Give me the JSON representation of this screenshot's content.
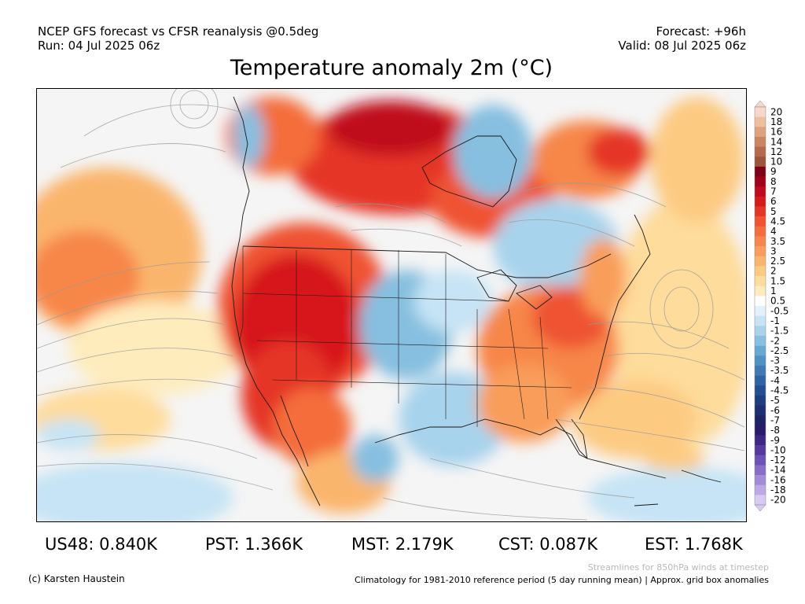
{
  "header": {
    "model_line": "NCEP GFS forecast vs CFSR reanalysis @0.5deg",
    "run_line": "Run: 04 Jul 2025 06z",
    "forecast_line": "Forecast: +96h",
    "valid_line": "Valid: 08 Jul 2025 06z"
  },
  "title": "Temperature anomaly 2m (°C)",
  "colorbar": {
    "levels": [
      {
        "label": "20",
        "color": "#f6d8c8"
      },
      {
        "label": "18",
        "color": "#eebf9e"
      },
      {
        "label": "16",
        "color": "#e0a27d"
      },
      {
        "label": "14",
        "color": "#cc8561"
      },
      {
        "label": "12",
        "color": "#b46a4b"
      },
      {
        "label": "10",
        "color": "#9c543a"
      },
      {
        "label": "9",
        "color": "#7d0015"
      },
      {
        "label": "8",
        "color": "#a00018"
      },
      {
        "label": "7",
        "color": "#c00a1e"
      },
      {
        "label": "6",
        "color": "#d7191c"
      },
      {
        "label": "5",
        "color": "#e53525"
      },
      {
        "label": "4.5",
        "color": "#ef5330"
      },
      {
        "label": "4",
        "color": "#f46d3b"
      },
      {
        "label": "3.5",
        "color": "#f7864a"
      },
      {
        "label": "3",
        "color": "#f99d5a"
      },
      {
        "label": "2.5",
        "color": "#fab56d"
      },
      {
        "label": "2",
        "color": "#fdca82"
      },
      {
        "label": "1.5",
        "color": "#fedc9b"
      },
      {
        "label": "1",
        "color": "#feecbd"
      },
      {
        "label": "0.5",
        "color": "#ffffff"
      },
      {
        "label": "-0.5",
        "color": "#e3f1fa"
      },
      {
        "label": "-1",
        "color": "#c6e4f5"
      },
      {
        "label": "-1.5",
        "color": "#a7d3ec"
      },
      {
        "label": "-2",
        "color": "#86bfe0"
      },
      {
        "label": "-2.5",
        "color": "#67a9d4"
      },
      {
        "label": "-3",
        "color": "#4f92c6"
      },
      {
        "label": "-3.5",
        "color": "#3d7ab6"
      },
      {
        "label": "-4",
        "color": "#2e63a4"
      },
      {
        "label": "-4.5",
        "color": "#234f92"
      },
      {
        "label": "-5",
        "color": "#1d3f82"
      },
      {
        "label": "-6",
        "color": "#1b2f72"
      },
      {
        "label": "-7",
        "color": "#1e2266"
      },
      {
        "label": "-8",
        "color": "#2b1a6c"
      },
      {
        "label": "-9",
        "color": "#3d2685"
      },
      {
        "label": "-10",
        "color": "#55399f"
      },
      {
        "label": "-12",
        "color": "#6d52b5"
      },
      {
        "label": "-14",
        "color": "#876dc8"
      },
      {
        "label": "-16",
        "color": "#a28bd8"
      },
      {
        "label": "-18",
        "color": "#bca9e6"
      },
      {
        "label": "-20",
        "color": "#d7cbf1"
      }
    ]
  },
  "stats": [
    {
      "label": "US48: 0.840K"
    },
    {
      "label": "PST: 1.366K"
    },
    {
      "label": "MST: 2.179K"
    },
    {
      "label": "CST: 0.087K"
    },
    {
      "label": "EST: 1.768K"
    }
  ],
  "footer": {
    "credit": "(c) Karsten Haustein",
    "streamline_note": "Streamlines for 850hPa winds at timestep",
    "climatology_note": "Climatology for 1981-2010 reference period (5 day running mean) | Approx. grid box anomalies"
  }
}
